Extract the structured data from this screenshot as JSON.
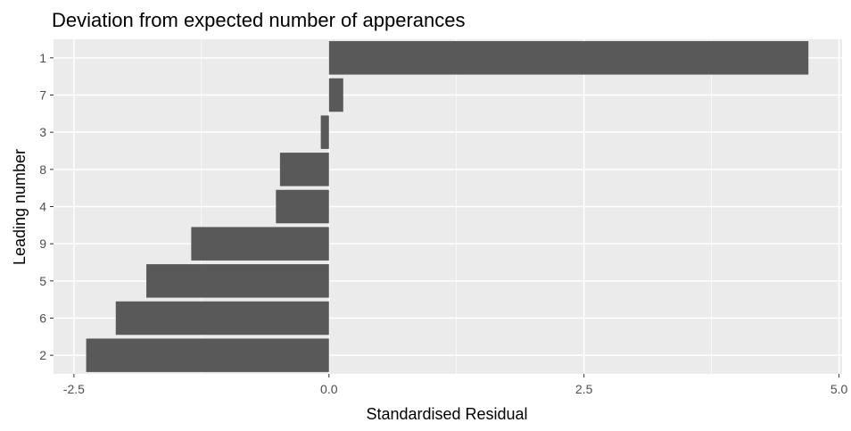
{
  "chart_data": {
    "type": "bar",
    "orientation": "horizontal",
    "title": "Deviation from expected number of apperances",
    "xlabel": "Standardised Residual",
    "ylabel": "Leading number",
    "categories": [
      "1",
      "7",
      "3",
      "8",
      "4",
      "9",
      "5",
      "6",
      "2"
    ],
    "values": [
      4.7,
      0.14,
      -0.08,
      -0.48,
      -0.52,
      -1.35,
      -1.79,
      -2.09,
      -2.38
    ],
    "xlim": [
      -2.7,
      5.03
    ],
    "xticks": [
      -2.5,
      0.0,
      2.5,
      5.0
    ],
    "xtick_labels": [
      "-2.5",
      "0.0",
      "2.5",
      "5.0"
    ],
    "grid": true,
    "colors": {
      "bar": "#595959",
      "panel": "#ebebeb",
      "grid": "#ffffff",
      "tick_text": "#4d4d4d",
      "tick_mark": "#333333"
    }
  }
}
